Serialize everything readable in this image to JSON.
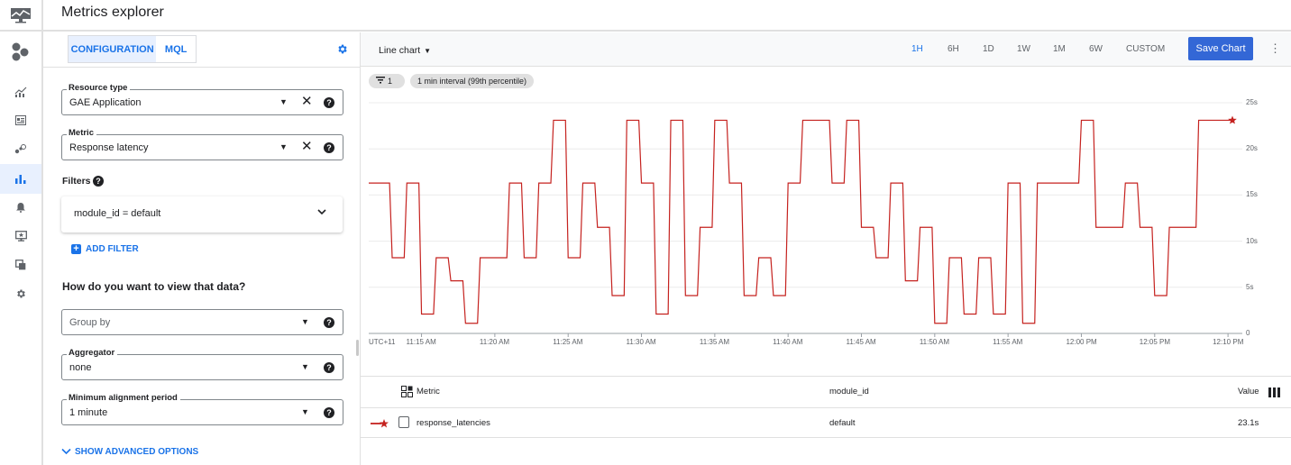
{
  "header": {
    "title": "Metrics explorer"
  },
  "nav": {
    "items": [
      "monitoring-logo",
      "overview",
      "dashboards",
      "services",
      "metrics-explorer",
      "alerting",
      "uptime-checks",
      "groups",
      "settings"
    ],
    "active": "metrics-explorer"
  },
  "config": {
    "tabs": [
      {
        "label": "CONFIGURATION",
        "selected": true
      },
      {
        "label": "MQL",
        "selected": false
      }
    ],
    "resource_type": {
      "label": "Resource type",
      "value": "GAE Application"
    },
    "metric": {
      "label": "Metric",
      "value": "Response latency"
    },
    "filters": {
      "label": "Filters",
      "items": [
        "module_id = default"
      ],
      "add_label": "ADD FILTER"
    },
    "view_heading": "How do you want to view that data?",
    "group_by": {
      "placeholder": "Group by"
    },
    "aggregator": {
      "label": "Aggregator",
      "value": "none"
    },
    "alignment": {
      "label": "Minimum alignment period",
      "value": "1 minute"
    },
    "advanced_label": "SHOW ADVANCED OPTIONS"
  },
  "toolbar": {
    "chart_type": "Line chart",
    "ranges": [
      "1H",
      "6H",
      "1D",
      "1W",
      "1M",
      "6W",
      "CUSTOM"
    ],
    "selected_range": "1H",
    "save_label": "Save Chart",
    "filter_count": "1",
    "interval_chip": "1 min interval (99th percentile)"
  },
  "chart_data": {
    "type": "line",
    "timezone_label": "UTC+11",
    "x_ticks": [
      "11:15 AM",
      "11:20 AM",
      "11:25 AM",
      "11:30 AM",
      "11:35 AM",
      "11:40 AM",
      "11:45 AM",
      "11:50 AM",
      "11:55 AM",
      "12:00 PM",
      "12:05 PM",
      "12:10 PM"
    ],
    "y_ticks": [
      "0",
      "5s",
      "10s",
      "15s",
      "20s",
      "25s"
    ],
    "ylim": [
      0,
      25
    ],
    "xlim": [
      "11:11:24",
      "12:10:18"
    ],
    "grid": true,
    "color": "#c5221f",
    "series": [
      {
        "name": "response_latencies",
        "x": [
          "11:12",
          "11:13",
          "11:14",
          "11:15",
          "11:16",
          "11:17",
          "11:18",
          "11:19",
          "11:20",
          "11:21",
          "11:22",
          "11:23",
          "11:24",
          "11:25",
          "11:26",
          "11:27",
          "11:28",
          "11:29",
          "11:30",
          "11:31",
          "11:32",
          "11:33",
          "11:34",
          "11:35",
          "11:36",
          "11:37",
          "11:38",
          "11:39",
          "11:40",
          "11:41",
          "11:42",
          "11:43",
          "11:44",
          "11:45",
          "11:46",
          "11:47",
          "11:48",
          "11:49",
          "11:50",
          "11:51",
          "11:52",
          "11:53",
          "11:54",
          "11:55",
          "11:56",
          "11:57",
          "11:58",
          "11:59",
          "12:00",
          "12:01",
          "12:02",
          "12:03",
          "12:04",
          "12:05",
          "12:06",
          "12:07",
          "12:08",
          "12:09"
        ],
        "values": [
          16.3,
          8.2,
          16.3,
          2.1,
          8.2,
          5.7,
          1.1,
          8.2,
          8.2,
          16.3,
          8.2,
          16.3,
          23.1,
          8.2,
          16.3,
          11.5,
          4.1,
          23.1,
          16.3,
          2.1,
          23.1,
          4.1,
          11.5,
          23.1,
          16.3,
          4.1,
          8.2,
          4.1,
          16.3,
          23.1,
          23.1,
          16.3,
          23.1,
          11.5,
          8.2,
          16.3,
          5.7,
          11.5,
          1.1,
          8.2,
          2.1,
          8.2,
          2.1,
          16.3,
          1.1,
          16.3,
          16.3,
          16.3,
          23.1,
          11.5,
          11.5,
          16.3,
          11.5,
          4.1,
          11.5,
          11.5,
          23.1,
          23.1
        ]
      }
    ]
  },
  "table": {
    "headers": {
      "metric": "Metric",
      "module_id": "module_id",
      "value": "Value"
    },
    "rows": [
      {
        "metric": "response_latencies",
        "module_id": "default",
        "value": "23.1s"
      }
    ]
  }
}
